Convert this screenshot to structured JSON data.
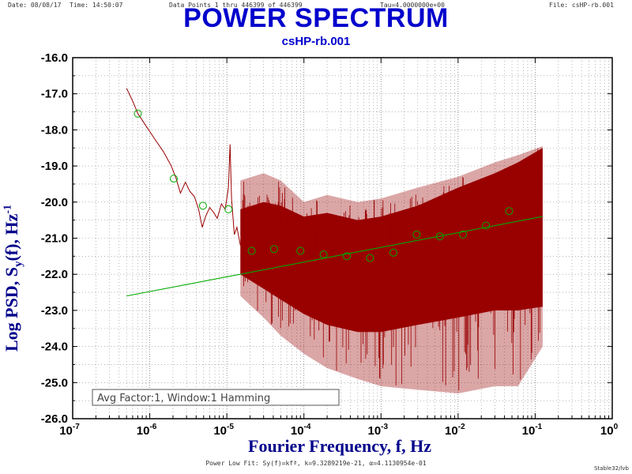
{
  "header": {
    "date": "Date: 08/08/17",
    "time": "Time: 14:50:07",
    "points": "Data Points 1 thru 446399 of 446399",
    "tau": "Tau=4.0000000e+00",
    "file": "File: csHP-rb.001"
  },
  "fit_note": "Power Low Fit: Sy(f)=kfª, k=9.3289219e-21, α=4.1130954e-01",
  "footer": "Stable32/lvb",
  "chart_data": {
    "type": "line",
    "title": "POWER SPECTRUM",
    "subtitle": "csHP-rb.001",
    "xlabel": "Fourier Frequency, f, Hz",
    "ylabel_parts": {
      "main": "Log PSD, S",
      "sub": "y",
      "mid": "(f), Hz",
      "sup": "-1"
    },
    "xscale": "log",
    "xlim": [
      1e-07,
      1
    ],
    "ylim": [
      -26.0,
      -16.0
    ],
    "grid": true,
    "x_ticks": [
      {
        "base": "10",
        "exp": "-7"
      },
      {
        "base": "10",
        "exp": "-6"
      },
      {
        "base": "10",
        "exp": "-5"
      },
      {
        "base": "10",
        "exp": "-4"
      },
      {
        "base": "10",
        "exp": "-3"
      },
      {
        "base": "10",
        "exp": "-2"
      },
      {
        "base": "10",
        "exp": "-1"
      },
      {
        "base": "10",
        "exp": "0"
      }
    ],
    "y_ticks": [
      "-16.0",
      "-17.0",
      "-18.0",
      "-19.0",
      "-20.0",
      "-21.0",
      "-22.0",
      "-23.0",
      "-24.0",
      "-25.0",
      "-26.0"
    ],
    "legend": {
      "text": "Avg Factor:1, Window:1 Hamming",
      "position": "bottom-left"
    },
    "colors": {
      "psd": "#990000",
      "fit": "#00aa00",
      "avg_points": "#00aa00",
      "frame": "#000000"
    },
    "psd_low_freq_trace": [
      [
        5e-07,
        -16.85
      ],
      [
        6e-07,
        -17.2
      ],
      [
        7e-07,
        -17.55
      ],
      [
        9e-07,
        -17.9
      ],
      [
        1.2e-06,
        -18.3
      ],
      [
        1.5e-06,
        -18.6
      ],
      [
        1.9e-06,
        -19.0
      ],
      [
        2.2e-06,
        -19.35
      ],
      [
        2.5e-06,
        -19.75
      ],
      [
        2.9e-06,
        -19.45
      ],
      [
        3.3e-06,
        -19.7
      ],
      [
        3.8e-06,
        -19.85
      ],
      [
        4.3e-06,
        -20.2
      ],
      [
        4.8e-06,
        -20.7
      ],
      [
        5.3e-06,
        -20.4
      ],
      [
        6e-06,
        -20.15
      ],
      [
        6.8e-06,
        -20.3
      ],
      [
        7.5e-06,
        -20.45
      ],
      [
        8.5e-06,
        -20.05
      ],
      [
        9.5e-06,
        -20.2
      ],
      [
        1.05e-05,
        -19.6
      ],
      [
        1.1e-05,
        -18.4
      ],
      [
        1.15e-05,
        -19.9
      ],
      [
        1.25e-05,
        -20.9
      ],
      [
        1.35e-05,
        -20.7
      ],
      [
        1.5e-05,
        -21.2
      ]
    ],
    "psd_envelope_upper": [
      [
        1.5e-05,
        -20.2
      ],
      [
        3e-05,
        -20.0
      ],
      [
        5e-05,
        -20.1
      ],
      [
        0.0001,
        -20.4
      ],
      [
        0.0002,
        -20.3
      ],
      [
        0.0005,
        -20.5
      ],
      [
        0.001,
        -20.4
      ],
      [
        0.003,
        -20.1
      ],
      [
        0.01,
        -19.6
      ],
      [
        0.03,
        -19.2
      ],
      [
        0.06,
        -18.9
      ],
      [
        0.125,
        -18.5
      ]
    ],
    "psd_envelope_lower": [
      [
        1.5e-05,
        -22.0
      ],
      [
        3e-05,
        -22.4
      ],
      [
        5e-05,
        -22.7
      ],
      [
        0.0001,
        -23.1
      ],
      [
        0.0002,
        -23.4
      ],
      [
        0.0005,
        -23.6
      ],
      [
        0.001,
        -23.6
      ],
      [
        0.003,
        -23.4
      ],
      [
        0.01,
        -23.2
      ],
      [
        0.03,
        -23.0
      ],
      [
        0.06,
        -23.0
      ],
      [
        0.125,
        -22.9
      ]
    ],
    "psd_outer_upper": [
      [
        1.5e-05,
        -19.4
      ],
      [
        3e-05,
        -19.2
      ],
      [
        5e-05,
        -19.4
      ],
      [
        0.0001,
        -20.0
      ],
      [
        0.0002,
        -19.8
      ],
      [
        0.0005,
        -20.0
      ],
      [
        0.001,
        -19.9
      ],
      [
        0.003,
        -19.6
      ],
      [
        0.01,
        -19.3
      ],
      [
        0.03,
        -18.9
      ],
      [
        0.06,
        -18.7
      ],
      [
        0.125,
        -18.45
      ]
    ],
    "psd_outer_lower": [
      [
        1.5e-05,
        -22.6
      ],
      [
        3e-05,
        -23.2
      ],
      [
        5e-05,
        -23.7
      ],
      [
        0.0001,
        -24.2
      ],
      [
        0.0002,
        -24.6
      ],
      [
        0.0005,
        -24.9
      ],
      [
        0.001,
        -25.1
      ],
      [
        0.003,
        -25.2
      ],
      [
        0.01,
        -25.3
      ],
      [
        0.03,
        -25.1
      ],
      [
        0.06,
        -25.1
      ],
      [
        0.125,
        -24.0
      ]
    ],
    "avg_points": [
      [
        7e-07,
        -17.55
      ],
      [
        2.05e-06,
        -19.35
      ],
      [
        4.9e-06,
        -20.1
      ],
      [
        1.05e-05,
        -20.2
      ],
      [
        2.1e-05,
        -21.35
      ],
      [
        4.1e-05,
        -21.3
      ],
      [
        9e-05,
        -21.35
      ],
      [
        0.00018,
        -21.45
      ],
      [
        0.00036,
        -21.5
      ],
      [
        0.00072,
        -21.55
      ],
      [
        0.00145,
        -21.4
      ],
      [
        0.0029,
        -20.9
      ],
      [
        0.0058,
        -20.95
      ],
      [
        0.0116,
        -20.9
      ],
      [
        0.023,
        -20.65
      ],
      [
        0.046,
        -20.25
      ]
    ],
    "fit_line": [
      [
        5e-07,
        -22.6
      ],
      [
        0.125,
        -20.4
      ]
    ]
  }
}
